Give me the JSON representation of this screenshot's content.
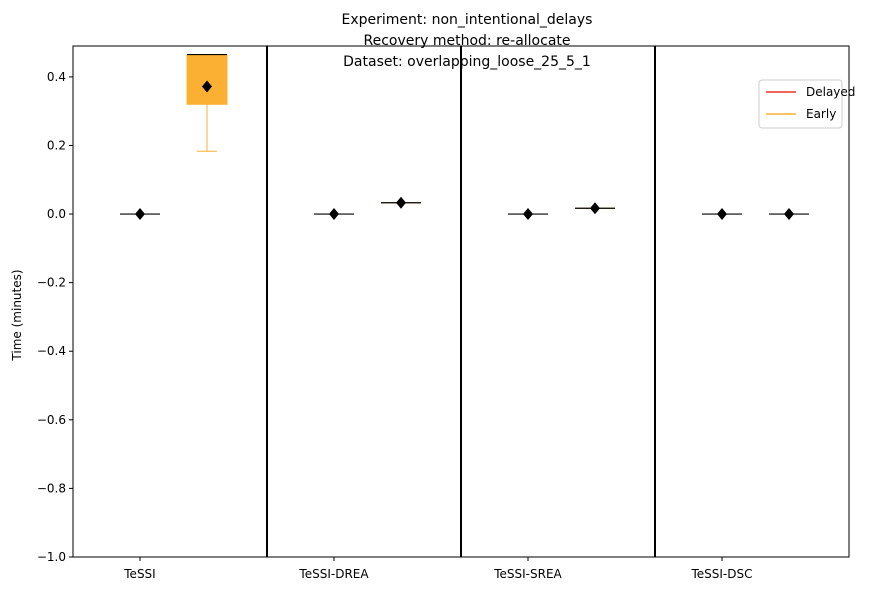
{
  "chart_data": {
    "type": "box",
    "title_lines": [
      "Experiment: non_intentional_delays",
      "Recovery method: re-allocate",
      "Dataset: overlapping_loose_25_5_1"
    ],
    "ylabel": "Time (minutes)",
    "xlabel": "",
    "ylim": [
      -1.0,
      0.49
    ],
    "yticks": [
      -1.0,
      -0.8,
      -0.6,
      -0.4,
      -0.2,
      0.0,
      0.2,
      0.4
    ],
    "ytick_labels": [
      "−1.0",
      "−0.8",
      "−0.6",
      "−0.4",
      "−0.2",
      "0.0",
      "0.2",
      "0.4"
    ],
    "categories": [
      "TeSSI",
      "TeSSI-DREA",
      "TeSSI-SREA",
      "TeSSI-DSC"
    ],
    "legend_position": "top-right",
    "grid": false,
    "series": [
      {
        "name": "Delayed",
        "color": "#ee3322",
        "boxes": [
          {
            "category": "TeSSI",
            "q1": 0.0,
            "median": 0.0,
            "q3": 0.0,
            "whisker_low": 0.0,
            "whisker_high": 0.0,
            "mean": 0.0
          },
          {
            "category": "TeSSI-DREA",
            "q1": 0.0,
            "median": 0.0,
            "q3": 0.0,
            "whisker_low": 0.0,
            "whisker_high": 0.0,
            "mean": 0.0
          },
          {
            "category": "TeSSI-SREA",
            "q1": 0.0,
            "median": 0.0,
            "q3": 0.0,
            "whisker_low": 0.0,
            "whisker_high": 0.0,
            "mean": 0.0
          },
          {
            "category": "TeSSI-DSC",
            "q1": 0.0,
            "median": 0.0,
            "q3": 0.0,
            "whisker_low": 0.0,
            "whisker_high": 0.0,
            "mean": 0.0
          }
        ]
      },
      {
        "name": "Early",
        "color": "#fbb034",
        "boxes": [
          {
            "category": "TeSSI",
            "q1": 0.32,
            "median": 0.465,
            "q3": 0.465,
            "whisker_low": 0.183,
            "whisker_high": 0.465,
            "mean": 0.372
          },
          {
            "category": "TeSSI-DREA",
            "q1": 0.033,
            "median": 0.033,
            "q3": 0.033,
            "whisker_low": 0.033,
            "whisker_high": 0.033,
            "mean": 0.033
          },
          {
            "category": "TeSSI-SREA",
            "q1": 0.017,
            "median": 0.017,
            "q3": 0.017,
            "whisker_low": 0.017,
            "whisker_high": 0.017,
            "mean": 0.017
          },
          {
            "category": "TeSSI-DSC",
            "q1": 0.0,
            "median": 0.0,
            "q3": 0.0,
            "whisker_low": 0.0,
            "whisker_high": 0.0,
            "mean": 0.0
          }
        ]
      }
    ]
  }
}
